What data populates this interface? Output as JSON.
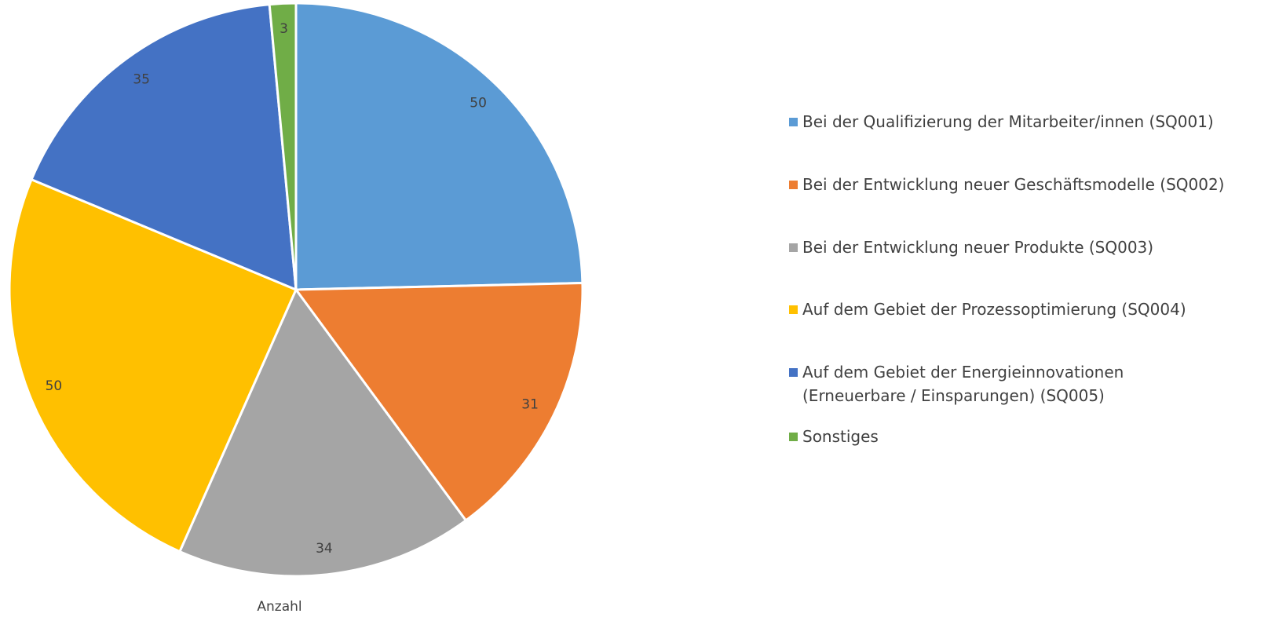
{
  "chart_data": {
    "type": "pie",
    "categories": [
      "Bei der Qualifizierung der Mitarbeiter/innen (SQ001)",
      "Bei der Entwicklung neuer Geschäftsmodelle (SQ002)",
      "Bei der Entwicklung neuer Produkte (SQ003)",
      "Auf dem Gebiet der Prozessoptimierung (SQ004)",
      "Auf dem Gebiet der Energieinnovationen (Erneuerbare / Einsparungen) (SQ005)",
      "Sonstiges"
    ],
    "values": [
      50,
      31,
      34,
      50,
      35,
      3
    ],
    "colors": [
      "#5b9bd5",
      "#ed7d31",
      "#a5a5a5",
      "#ffc000",
      "#4472c4",
      "#70ad47"
    ],
    "xlabel": "Anzahl",
    "legend": "right"
  }
}
